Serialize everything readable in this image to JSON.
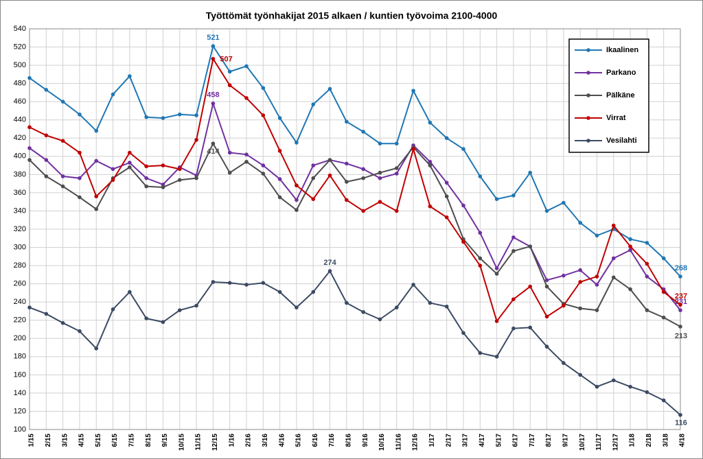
{
  "chart_data": {
    "type": "line",
    "title": "Työttömät työnhakijat 2015 alkaen / kuntien työvoima 2100-4000",
    "categories": [
      "1/15",
      "2/15",
      "3/15",
      "4/15",
      "5/15",
      "6/15",
      "7/15",
      "8/15",
      "9/15",
      "10/15",
      "11/15",
      "12/15",
      "1/16",
      "2/16",
      "3/16",
      "4/16",
      "5/16",
      "6/16",
      "7/16",
      "8/16",
      "9/16",
      "10/16",
      "11/16",
      "12/16",
      "1/17",
      "2/17",
      "3/17",
      "4/17",
      "5/17",
      "6/17",
      "7/17",
      "8/17",
      "9/17",
      "10/17",
      "11/17",
      "12/17",
      "1/18",
      "2/18",
      "3/18",
      "4/18"
    ],
    "series": [
      {
        "name": "Ikaalinen",
        "color": "#1f77b4",
        "values": [
          486,
          473,
          460,
          446,
          428,
          468,
          488,
          443,
          442,
          446,
          445,
          521,
          493,
          499,
          475,
          442,
          415,
          457,
          474,
          438,
          427,
          414,
          414,
          472,
          437,
          420,
          408,
          378,
          353,
          357,
          382,
          340,
          349,
          327,
          313,
          320,
          309,
          305,
          288,
          268
        ],
        "value_labels": [
          null,
          null,
          null,
          null,
          null,
          null,
          null,
          null,
          null,
          null,
          null,
          "521",
          null,
          null,
          null,
          null,
          null,
          null,
          null,
          null,
          null,
          null,
          null,
          null,
          null,
          null,
          null,
          null,
          null,
          null,
          null,
          null,
          null,
          null,
          null,
          null,
          null,
          null,
          null,
          "268"
        ]
      },
      {
        "name": "Parkano",
        "color": "#7030a0",
        "values": [
          409,
          396,
          378,
          376,
          395,
          386,
          393,
          376,
          369,
          388,
          379,
          458,
          404,
          402,
          390,
          375,
          352,
          390,
          396,
          392,
          386,
          376,
          381,
          412,
          394,
          371,
          346,
          316,
          277,
          311,
          301,
          264,
          269,
          275,
          259,
          288,
          297,
          268,
          254,
          231
        ],
        "value_labels": [
          null,
          null,
          null,
          null,
          null,
          null,
          null,
          null,
          null,
          null,
          null,
          "458",
          null,
          null,
          null,
          null,
          null,
          null,
          null,
          null,
          null,
          null,
          null,
          null,
          null,
          null,
          null,
          null,
          null,
          null,
          null,
          null,
          null,
          null,
          null,
          null,
          null,
          null,
          null,
          "231"
        ]
      },
      {
        "name": "Pälkäne",
        "color": "#4d4d4d",
        "values": [
          396,
          378,
          367,
          355,
          342,
          376,
          388,
          367,
          366,
          374,
          376,
          414,
          382,
          394,
          381,
          355,
          341,
          376,
          396,
          372,
          376,
          382,
          387,
          410,
          390,
          356,
          309,
          288,
          271,
          296,
          301,
          257,
          238,
          233,
          231,
          267,
          254,
          231,
          223,
          213
        ],
        "value_labels": [
          null,
          null,
          null,
          null,
          null,
          null,
          null,
          null,
          null,
          null,
          null,
          "414",
          null,
          null,
          null,
          null,
          null,
          null,
          null,
          null,
          null,
          null,
          null,
          null,
          null,
          null,
          null,
          null,
          null,
          null,
          null,
          null,
          null,
          null,
          null,
          null,
          null,
          null,
          null,
          "213"
        ]
      },
      {
        "name": "Virrat",
        "color": "#c00000",
        "values": [
          432,
          423,
          417,
          404,
          356,
          374,
          404,
          389,
          390,
          386,
          418,
          507,
          478,
          464,
          445,
          406,
          368,
          353,
          379,
          352,
          340,
          350,
          340,
          408,
          345,
          333,
          306,
          280,
          219,
          243,
          257,
          224,
          236,
          262,
          268,
          324,
          301,
          282,
          251,
          237
        ],
        "value_labels": [
          null,
          null,
          null,
          null,
          null,
          null,
          null,
          null,
          null,
          null,
          null,
          "507",
          null,
          null,
          null,
          null,
          null,
          null,
          null,
          null,
          null,
          null,
          null,
          null,
          null,
          null,
          null,
          null,
          null,
          null,
          null,
          null,
          null,
          null,
          null,
          null,
          null,
          null,
          null,
          "237"
        ]
      },
      {
        "name": "Vesilahti",
        "color": "#3b4a63",
        "values": [
          234,
          227,
          217,
          208,
          189,
          232,
          251,
          222,
          218,
          231,
          236,
          262,
          261,
          259,
          261,
          251,
          234,
          251,
          274,
          239,
          229,
          221,
          234,
          259,
          239,
          235,
          206,
          184,
          180,
          211,
          212,
          191,
          173,
          160,
          147,
          154,
          147,
          141,
          132,
          116
        ],
        "value_labels": [
          null,
          null,
          null,
          null,
          null,
          null,
          null,
          null,
          null,
          null,
          null,
          null,
          null,
          null,
          null,
          null,
          null,
          null,
          "274",
          null,
          null,
          null,
          null,
          null,
          null,
          null,
          null,
          null,
          null,
          null,
          null,
          null,
          null,
          null,
          null,
          null,
          null,
          null,
          null,
          "116"
        ]
      }
    ],
    "ylim": [
      100,
      540
    ],
    "yticks": [
      100,
      120,
      140,
      160,
      180,
      200,
      220,
      240,
      260,
      280,
      300,
      320,
      340,
      360,
      380,
      400,
      420,
      440,
      460,
      480,
      500,
      520,
      540
    ],
    "grid": true,
    "legend": "top-right"
  }
}
